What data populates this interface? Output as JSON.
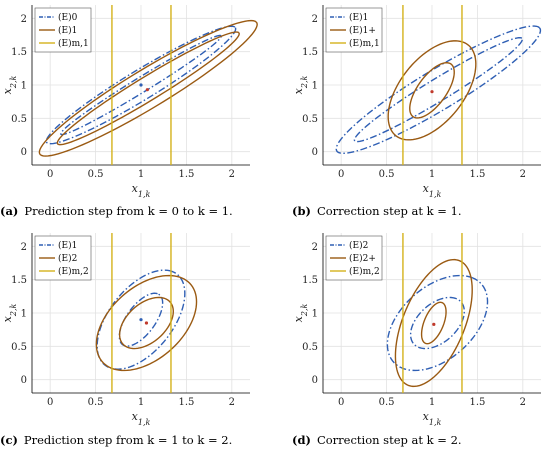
{
  "chart_data": [
    {
      "id": "a",
      "type": "line",
      "caption_id": "(a)",
      "caption": "Prediction step from k = 0 to k = 1.",
      "xlabel": "x1,k",
      "ylabel": "x2,k",
      "xlim": [
        -0.2,
        2.2
      ],
      "ylim": [
        -0.2,
        2.2
      ],
      "xticks": [
        "0",
        "0.5",
        "1",
        "1.5",
        "2"
      ],
      "yticks": [
        "0",
        "0.5",
        "1",
        "1.5",
        "2"
      ],
      "grid": true,
      "legend": "top-left",
      "series": [
        {
          "name": "(E)0",
          "color": "#2f5fb4",
          "style": "dashdot",
          "ellipses": [
            {
              "cx": 1.0,
              "cy": 1.0,
              "rx": 1.35,
              "ry": 0.2,
              "angle": 40
            },
            {
              "cx": 1.0,
              "cy": 1.0,
              "rx": 1.15,
              "ry": 0.1,
              "angle": 40
            }
          ]
        },
        {
          "name": "(E)1",
          "color": "#9a5a12",
          "style": "solid",
          "ellipses": [
            {
              "cx": 1.08,
              "cy": 0.95,
              "rx": 1.55,
              "ry": 0.26,
              "angle": 40
            },
            {
              "cx": 1.08,
              "cy": 0.95,
              "rx": 1.3,
              "ry": 0.16,
              "angle": 40
            }
          ]
        },
        {
          "name": "(E)m,1",
          "color": "#d4b21c",
          "style": "solid",
          "vlines": [
            0.68,
            1.33
          ]
        }
      ],
      "points": [
        {
          "x": 1.0,
          "y": 1.0,
          "color": "#2f5fb4"
        },
        {
          "x": 1.07,
          "y": 0.93,
          "color": "#c0392b"
        }
      ]
    },
    {
      "id": "b",
      "type": "line",
      "caption_id": "(b)",
      "caption": "Correction step at k = 1.",
      "xlabel": "x1,k",
      "ylabel": "x2,k",
      "xlim": [
        -0.2,
        2.2
      ],
      "ylim": [
        -0.2,
        2.2
      ],
      "xticks": [
        "0",
        "0.5",
        "1",
        "1.5",
        "2"
      ],
      "yticks": [
        "0",
        "0.5",
        "1",
        "1.5",
        "2"
      ],
      "grid": true,
      "legend": "top-left",
      "series": [
        {
          "name": "(E)1",
          "color": "#2f5fb4",
          "style": "dashdot",
          "ellipses": [
            {
              "cx": 1.07,
              "cy": 0.93,
              "rx": 1.45,
              "ry": 0.27,
              "angle": 40
            },
            {
              "cx": 1.07,
              "cy": 0.93,
              "rx": 1.2,
              "ry": 0.15,
              "angle": 40
            }
          ]
        },
        {
          "name": "(E)1+",
          "color": "#9a5a12",
          "style": "solid",
          "ellipses": [
            {
              "cx": 1.0,
              "cy": 0.92,
              "rx": 0.8,
              "ry": 0.38,
              "angle": 65
            },
            {
              "cx": 1.0,
              "cy": 0.92,
              "rx": 0.45,
              "ry": 0.17,
              "angle": 65
            }
          ]
        },
        {
          "name": "(E)m,1",
          "color": "#d4b21c",
          "style": "solid",
          "vlines": [
            0.68,
            1.33
          ]
        }
      ],
      "points": [
        {
          "x": 1.0,
          "y": 0.9,
          "color": "#c0392b"
        }
      ]
    },
    {
      "id": "c",
      "type": "line",
      "caption_id": "(c)",
      "caption": "Prediction step from k = 1 to k = 2.",
      "xlabel": "x1,k",
      "ylabel": "x2,k",
      "xlim": [
        -0.2,
        2.2
      ],
      "ylim": [
        -0.2,
        2.2
      ],
      "xticks": [
        "0",
        "0.5",
        "1",
        "1.5",
        "2"
      ],
      "yticks": [
        "0",
        "0.5",
        "1",
        "1.5",
        "2"
      ],
      "grid": true,
      "legend": "top-left",
      "series": [
        {
          "name": "(E)1",
          "color": "#2f5fb4",
          "style": "dashdot",
          "ellipses": [
            {
              "cx": 1.0,
              "cy": 0.9,
              "rx": 0.8,
              "ry": 0.38,
              "angle": 65
            },
            {
              "cx": 1.0,
              "cy": 0.9,
              "rx": 0.43,
              "ry": 0.17,
              "angle": 65
            }
          ]
        },
        {
          "name": "(E)2",
          "color": "#9a5a12",
          "style": "solid",
          "ellipses": [
            {
              "cx": 1.06,
              "cy": 0.85,
              "rx": 0.78,
              "ry": 0.45,
              "angle": 60
            },
            {
              "cx": 1.06,
              "cy": 0.85,
              "rx": 0.42,
              "ry": 0.24,
              "angle": 60
            }
          ]
        },
        {
          "name": "(E)m,2",
          "color": "#d4b21c",
          "style": "solid",
          "vlines": [
            0.68,
            1.33
          ]
        }
      ],
      "points": [
        {
          "x": 1.0,
          "y": 0.9,
          "color": "#2f5fb4"
        },
        {
          "x": 1.06,
          "y": 0.85,
          "color": "#c0392b"
        }
      ]
    },
    {
      "id": "d",
      "type": "line",
      "caption_id": "(d)",
      "caption": "Correction step at k = 2.",
      "xlabel": "x1,k",
      "ylabel": "x2,k",
      "xlim": [
        -0.2,
        2.2
      ],
      "ylim": [
        -0.2,
        2.2
      ],
      "xticks": [
        "0",
        "0.5",
        "1",
        "1.5",
        "2"
      ],
      "yticks": [
        "0",
        "0.5",
        "1",
        "1.5",
        "2"
      ],
      "grid": true,
      "legend": "top-left",
      "series": [
        {
          "name": "(E)2",
          "color": "#2f5fb4",
          "style": "dashdot",
          "ellipses": [
            {
              "cx": 1.06,
              "cy": 0.85,
              "rx": 0.78,
              "ry": 0.45,
              "angle": 60
            },
            {
              "cx": 1.06,
              "cy": 0.85,
              "rx": 0.42,
              "ry": 0.24,
              "angle": 60
            }
          ]
        },
        {
          "name": "(E)2+",
          "color": "#9a5a12",
          "style": "solid",
          "ellipses": [
            {
              "cx": 1.02,
              "cy": 0.85,
              "rx": 0.98,
              "ry": 0.35,
              "angle": 75
            },
            {
              "cx": 1.02,
              "cy": 0.85,
              "rx": 0.32,
              "ry": 0.11,
              "angle": 75
            }
          ]
        },
        {
          "name": "(E)m,2",
          "color": "#d4b21c",
          "style": "solid",
          "vlines": [
            0.68,
            1.33
          ]
        }
      ],
      "points": [
        {
          "x": 1.02,
          "y": 0.83,
          "color": "#c0392b"
        }
      ]
    }
  ]
}
